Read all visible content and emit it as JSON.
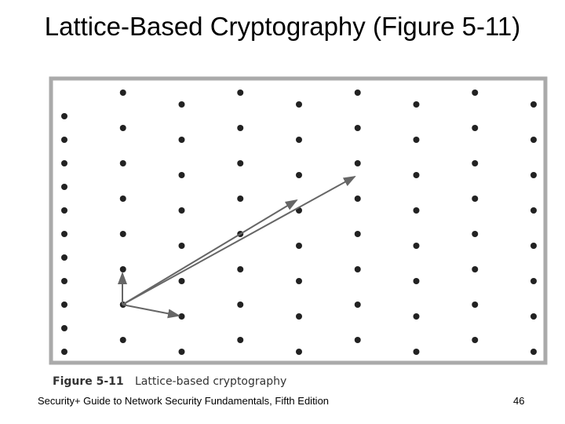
{
  "title": "Lattice-Based Cryptography (Figure 5-11)",
  "figure": {
    "label": "Figure 5-11",
    "caption": "Lattice-based cryptography"
  },
  "footer": {
    "text": "Security+ Guide to Network Security Fundamentals, Fifth Edition",
    "page": "46"
  }
}
